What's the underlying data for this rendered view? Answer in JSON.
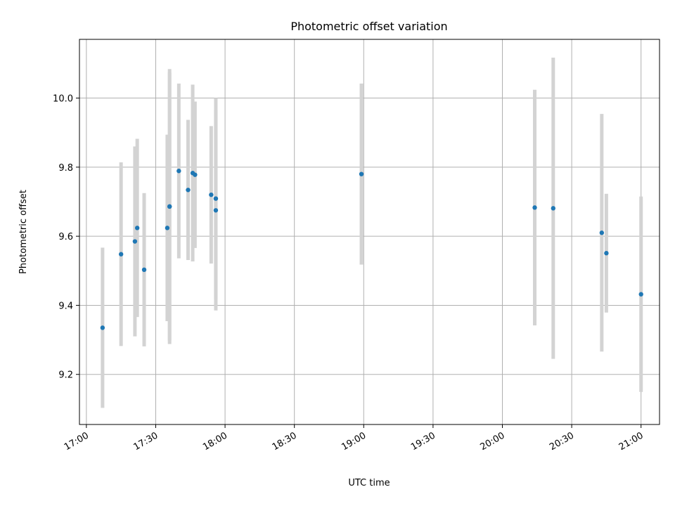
{
  "chart_data": {
    "type": "scatter",
    "title": "Photometric offset variation",
    "xlabel": "UTC time",
    "ylabel": "Photometric offset",
    "x_ticks": [
      "17:00",
      "17:30",
      "18:00",
      "18:30",
      "19:00",
      "19:30",
      "20:00",
      "20:30",
      "21:00"
    ],
    "y_ticks": [
      "9.2",
      "9.4",
      "9.6",
      "9.8",
      "10.0"
    ],
    "xlim": [
      "16:57",
      "21:08"
    ],
    "ylim": [
      9.055,
      10.17
    ],
    "grid": true,
    "point_color": "#1f77b4",
    "errorbar_color": "#d3d3d3",
    "series": [
      {
        "points": [
          {
            "x": "17:07",
            "y": 9.335,
            "yerr": 0.232
          },
          {
            "x": "17:15",
            "y": 9.548,
            "yerr": 0.266
          },
          {
            "x": "17:21",
            "y": 9.585,
            "yerr": 0.275
          },
          {
            "x": "17:22",
            "y": 9.624,
            "yerr": 0.258
          },
          {
            "x": "17:25",
            "y": 9.503,
            "yerr": 0.222
          },
          {
            "x": "17:35",
            "y": 9.624,
            "yerr": 0.27
          },
          {
            "x": "17:36",
            "y": 9.686,
            "yerr": 0.398
          },
          {
            "x": "17:36",
            "y": 9.686,
            "yerr": 0.388
          },
          {
            "x": "17:40",
            "y": 9.789,
            "yerr": 0.253
          },
          {
            "x": "17:44",
            "y": 9.734,
            "yerr": 0.203
          },
          {
            "x": "17:46",
            "y": 9.783,
            "yerr": 0.256
          },
          {
            "x": "17:47",
            "y": 9.778,
            "yerr": 0.212
          },
          {
            "x": "17:54",
            "y": 9.72,
            "yerr": 0.199
          },
          {
            "x": "17:56",
            "y": 9.675,
            "yerr": 0.29
          },
          {
            "x": "17:56",
            "y": 9.709,
            "yerr": 0.291
          },
          {
            "x": "18:59",
            "y": 9.78,
            "yerr": 0.262
          },
          {
            "x": "20:14",
            "y": 9.683,
            "yerr": 0.341
          },
          {
            "x": "20:22",
            "y": 9.681,
            "yerr": 0.436
          },
          {
            "x": "20:43",
            "y": 9.61,
            "yerr": 0.344
          },
          {
            "x": "20:45",
            "y": 9.551,
            "yerr": 0.172
          },
          {
            "x": "21:00",
            "y": 9.432,
            "yerr": 0.283
          }
        ]
      }
    ]
  }
}
